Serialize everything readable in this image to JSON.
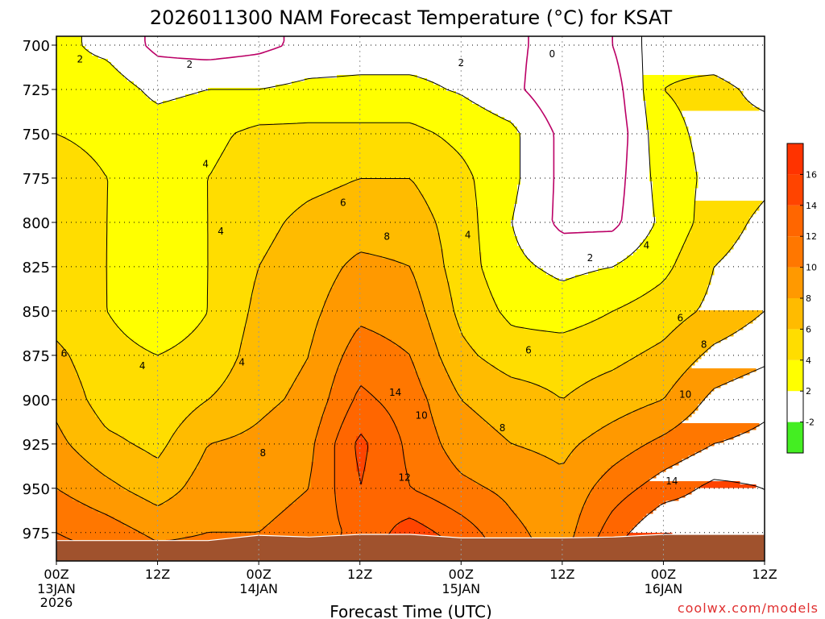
{
  "chart_data": {
    "type": "heatmap",
    "title": "2026011300 NAM Forecast Temperature (°C) for KSAT",
    "xlabel": "Forecast Time (UTC)",
    "ylabel": "",
    "credit": "coolwx.com/models",
    "x_range_hours": [
      0,
      84
    ],
    "y_range_hpa": [
      695,
      991
    ],
    "y_ticks": [
      700,
      725,
      750,
      775,
      800,
      825,
      850,
      875,
      900,
      925,
      950,
      975
    ],
    "y_tick_labels": [
      "700",
      "725",
      "750",
      "775",
      "800",
      "825",
      "850",
      "875",
      "900",
      "925",
      "950",
      "975"
    ],
    "x_ticks": [
      {
        "hour": 0,
        "time": "00Z",
        "date": "13JAN",
        "year": "2026"
      },
      {
        "hour": 12,
        "time": "12Z",
        "date": "",
        "year": ""
      },
      {
        "hour": 24,
        "time": "00Z",
        "date": "14JAN",
        "year": ""
      },
      {
        "hour": 36,
        "time": "12Z",
        "date": "",
        "year": ""
      },
      {
        "hour": 48,
        "time": "00Z",
        "date": "15JAN",
        "year": ""
      },
      {
        "hour": 60,
        "time": "12Z",
        "date": "",
        "year": ""
      },
      {
        "hour": 72,
        "time": "00Z",
        "date": "16JAN",
        "year": ""
      },
      {
        "hour": 84,
        "time": "12Z",
        "date": "",
        "year": ""
      }
    ],
    "grid": true,
    "legend_position": "right",
    "colorbar": {
      "levels": [
        -4,
        -2,
        2,
        4,
        6,
        8,
        10,
        12,
        14,
        16,
        18
      ],
      "labels": [
        "-2",
        "2",
        "4",
        "6",
        "8",
        "10",
        "12",
        "14",
        "16"
      ],
      "colors": [
        "#44ee22",
        "#ffffff",
        "#ffff00",
        "#ffdd00",
        "#ffbb00",
        "#ff9900",
        "#ff7700",
        "#ff6600",
        "#ff4400",
        "#ff3300"
      ]
    },
    "surface_pressure_hpa": [
      [
        0,
        979.5
      ],
      [
        6,
        979.5
      ],
      [
        12,
        979.5
      ],
      [
        18,
        979.5
      ],
      [
        24,
        976.5
      ],
      [
        30,
        977.5
      ],
      [
        36,
        976
      ],
      [
        42,
        976
      ],
      [
        48,
        978
      ],
      [
        54,
        978
      ],
      [
        60,
        978
      ],
      [
        66,
        977.5
      ],
      [
        72,
        976
      ],
      [
        78,
        976
      ],
      [
        84,
        976
      ]
    ],
    "zero_line_color": "#bb0066",
    "ground_color": "#a0522d",
    "hours": [
      0,
      6,
      12,
      18,
      24,
      30,
      36,
      42,
      48,
      54,
      60,
      66,
      72,
      78,
      84
    ],
    "levels_hpa": [
      700,
      725,
      750,
      775,
      800,
      825,
      850,
      875,
      900,
      925,
      950,
      975,
      991
    ],
    "temperature_c": [
      [
        2.5,
        1.5,
        -0.5,
        -1.0,
        -0.5,
        0.5,
        1.0,
        1.0,
        1.0,
        0.5,
        -1.0,
        0.0,
        3.5,
        3.0,
        2.5
      ],
      [
        2.5,
        3.0,
        1.5,
        2.0,
        2.0,
        2.5,
        2.5,
        2.5,
        1.8,
        0.5,
        -1.5,
        -1.0,
        4.0,
        4.5,
        3.5
      ],
      [
        4.0,
        3.5,
        3.0,
        3.5,
        4.5,
        4.5,
        4.5,
        4.5,
        3.5,
        2.5,
        -0.5,
        -1.5,
        3.5,
        4.5,
        4.5
      ],
      [
        5.0,
        4.0,
        3.5,
        4.0,
        5.0,
        5.5,
        6.0,
        6.0,
        4.5,
        2.5,
        -0.5,
        -1.0,
        3.0,
        4.5,
        5.5
      ],
      [
        5.0,
        4.0,
        3.0,
        4.0,
        5.5,
        6.5,
        7.0,
        7.0,
        5.0,
        2.0,
        -0.5,
        -0.5,
        2.5,
        5.0,
        6.5
      ],
      [
        5.0,
        4.0,
        2.5,
        4.0,
        6.0,
        7.0,
        8.5,
        8.0,
        5.0,
        2.5,
        1.5,
        2.0,
        3.5,
        6.0,
        7.0
      ],
      [
        5.0,
        4.0,
        3.0,
        4.0,
        6.5,
        7.5,
        9.5,
        9.0,
        5.5,
        3.5,
        3.0,
        4.0,
        5.0,
        6.5,
        8.0
      ],
      [
        6.5,
        4.5,
        4.0,
        4.5,
        7.0,
        8.0,
        11.0,
        10.0,
        6.5,
        5.0,
        5.0,
        5.5,
        6.5,
        8.5,
        9.5
      ],
      [
        7.5,
        5.0,
        4.5,
        6.0,
        7.5,
        8.5,
        12.5,
        11.0,
        8.0,
        7.0,
        6.0,
        7.0,
        8.0,
        10.5,
        11.5
      ],
      [
        8.5,
        6.5,
        5.5,
        8.0,
        8.5,
        9.5,
        14.5,
        11.5,
        9.0,
        8.0,
        7.5,
        9.0,
        10.5,
        12.0,
        12.5
      ],
      [
        10.0,
        8.5,
        7.0,
        9.0,
        9.0,
        10.0,
        14.0,
        12.0,
        10.5,
        9.5,
        8.5,
        11.0,
        13.0,
        14.5,
        14.0
      ],
      [
        12.0,
        11.0,
        9.5,
        10.0,
        10.0,
        11.0,
        12.5,
        15.0,
        13.0,
        10.5,
        9.0,
        13.0,
        16.0,
        15.5,
        14.5
      ],
      [
        13.0,
        12.5,
        11.0,
        11.0,
        11.0,
        11.5,
        13.5,
        16.5,
        14.5,
        11.0,
        9.5,
        14.5,
        17.5,
        16.5,
        15.0
      ]
    ],
    "contour_labels": [
      {
        "text": "2",
        "hour": 2.8,
        "hpa": 708
      },
      {
        "text": "2",
        "hour": 15.8,
        "hpa": 711
      },
      {
        "text": "2",
        "hour": 48,
        "hpa": 710
      },
      {
        "text": "0",
        "hour": 58.8,
        "hpa": 705
      },
      {
        "text": "2",
        "hour": 63.3,
        "hpa": 820
      },
      {
        "text": "4",
        "hour": 17.7,
        "hpa": 767
      },
      {
        "text": "4",
        "hour": 19.5,
        "hpa": 805
      },
      {
        "text": "4",
        "hour": 48.8,
        "hpa": 807
      },
      {
        "text": "4",
        "hour": 70,
        "hpa": 813
      },
      {
        "text": "4",
        "hour": 10.2,
        "hpa": 881
      },
      {
        "text": "4",
        "hour": 22,
        "hpa": 879
      },
      {
        "text": "6",
        "hour": 34,
        "hpa": 789
      },
      {
        "text": "6",
        "hour": 56,
        "hpa": 872
      },
      {
        "text": "6",
        "hour": 74,
        "hpa": 854
      },
      {
        "text": "6",
        "hour": 0.9,
        "hpa": 874
      },
      {
        "text": "8",
        "hour": 39.2,
        "hpa": 808
      },
      {
        "text": "8",
        "hour": 24.5,
        "hpa": 930
      },
      {
        "text": "8",
        "hour": 52.9,
        "hpa": 916
      },
      {
        "text": "8",
        "hour": 76.8,
        "hpa": 869
      },
      {
        "text": "10",
        "hour": 43.3,
        "hpa": 909
      },
      {
        "text": "10",
        "hour": 74.6,
        "hpa": 897
      },
      {
        "text": "12",
        "hour": 41.3,
        "hpa": 944
      },
      {
        "text": "14",
        "hour": 40.2,
        "hpa": 896
      },
      {
        "text": "14",
        "hour": 73,
        "hpa": 946
      }
    ]
  }
}
